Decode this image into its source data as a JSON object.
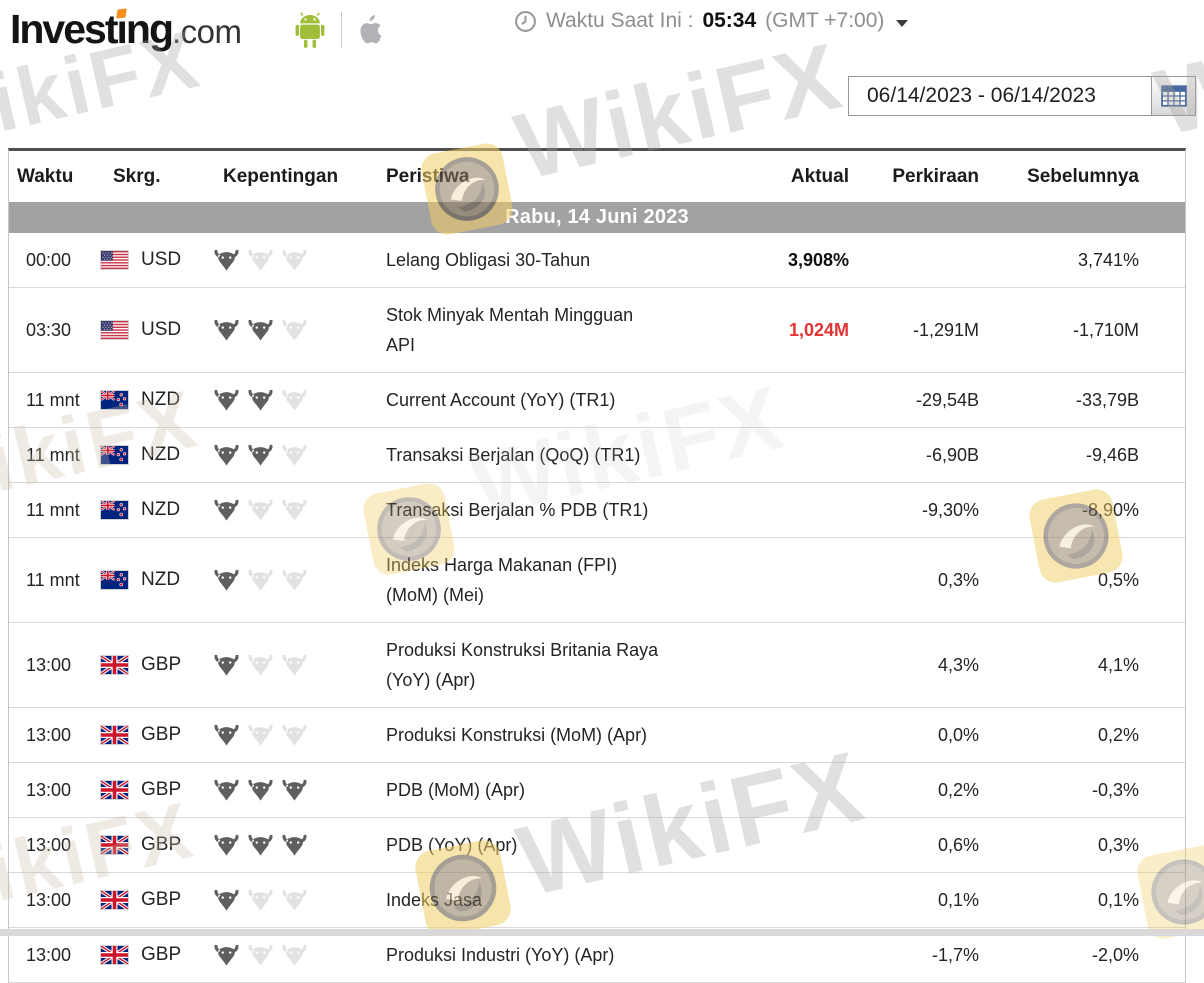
{
  "header": {
    "logo": {
      "part1": "Invest",
      "part2": "i",
      "part3": "ng",
      "suffix": ".com"
    },
    "clock_label": "Waktu Saat Ini :",
    "current_time": "05:34",
    "timezone": "(GMT +7:00)"
  },
  "datepicker": {
    "value": "06/14/2023 - 06/14/2023"
  },
  "table": {
    "columns": [
      "Waktu",
      "Skrg.",
      "Kepentingan",
      "Peristiwa",
      "Aktual",
      "Perkiraan",
      "Sebelumnya"
    ],
    "date_header": "Rabu, 14 Juni 2023",
    "rows": [
      {
        "time": "00:00",
        "flag": "us",
        "currency": "USD",
        "importance": 1,
        "event": "Lelang Obligasi 30-Tahun",
        "actual": "3,908%",
        "style": "bold",
        "forecast": "",
        "previous": "3,741%"
      },
      {
        "time": "03:30",
        "flag": "us",
        "currency": "USD",
        "importance": 2,
        "event": "Stok Minyak Mentah Mingguan API",
        "actual": "1,024M",
        "style": "red",
        "forecast": "-1,291M",
        "previous": "-1,710M"
      },
      {
        "time": "11 mnt",
        "flag": "nz",
        "currency": "NZD",
        "importance": 2,
        "event": "Current Account (YoY) (TR1)",
        "actual": "",
        "style": "",
        "forecast": "-29,54B",
        "previous": "-33,79B"
      },
      {
        "time": "11 mnt",
        "flag": "nz",
        "currency": "NZD",
        "importance": 2,
        "event": "Transaksi Berjalan (QoQ) (TR1)",
        "actual": "",
        "style": "",
        "forecast": "-6,90B",
        "previous": "-9,46B"
      },
      {
        "time": "11 mnt",
        "flag": "nz",
        "currency": "NZD",
        "importance": 1,
        "event": "Transaksi Berjalan % PDB (TR1)",
        "actual": "",
        "style": "",
        "forecast": "-9,30%",
        "previous": "-8,90%"
      },
      {
        "time": "11 mnt",
        "flag": "nz",
        "currency": "NZD",
        "importance": 1,
        "event": "Indeks Harga Makanan (FPI) (MoM) (Mei)",
        "actual": "",
        "style": "",
        "forecast": "0,3%",
        "previous": "0,5%"
      },
      {
        "time": "13:00",
        "flag": "gb",
        "currency": "GBP",
        "importance": 1,
        "event": "Produksi Konstruksi Britania Raya (YoY) (Apr)",
        "actual": "",
        "style": "",
        "forecast": "4,3%",
        "previous": "4,1%"
      },
      {
        "time": "13:00",
        "flag": "gb",
        "currency": "GBP",
        "importance": 1,
        "event": "Produksi Konstruksi (MoM) (Apr)",
        "actual": "",
        "style": "",
        "forecast": "0,0%",
        "previous": "0,2%"
      },
      {
        "time": "13:00",
        "flag": "gb",
        "currency": "GBP",
        "importance": 3,
        "event": "PDB (MoM) (Apr)",
        "actual": "",
        "style": "",
        "forecast": "0,2%",
        "previous": "-0,3%"
      },
      {
        "time": "13:00",
        "flag": "gb",
        "currency": "GBP",
        "importance": 3,
        "event": "PDB (YoY) (Apr)",
        "actual": "",
        "style": "",
        "forecast": "0,6%",
        "previous": "0,3%"
      },
      {
        "time": "13:00",
        "flag": "gb",
        "currency": "GBP",
        "importance": 1,
        "event": "Indeks Jasa",
        "actual": "",
        "style": "",
        "forecast": "0,1%",
        "previous": "0,1%"
      },
      {
        "time": "13:00",
        "flag": "gb",
        "currency": "GBP",
        "importance": 1,
        "event": "Produksi Industri (YoY) (Apr)",
        "actual": "",
        "style": "",
        "forecast": "-1,7%",
        "previous": "-2,0%"
      }
    ]
  },
  "watermark": {
    "text": "WikiFX"
  },
  "colors": {
    "actual_red": "#e23434",
    "brand_orange": "#f78f1e",
    "android_green": "#9fbf3b",
    "date_bar_bg": "#a2a2a2",
    "calendar_icon_blue": "#46699c"
  }
}
